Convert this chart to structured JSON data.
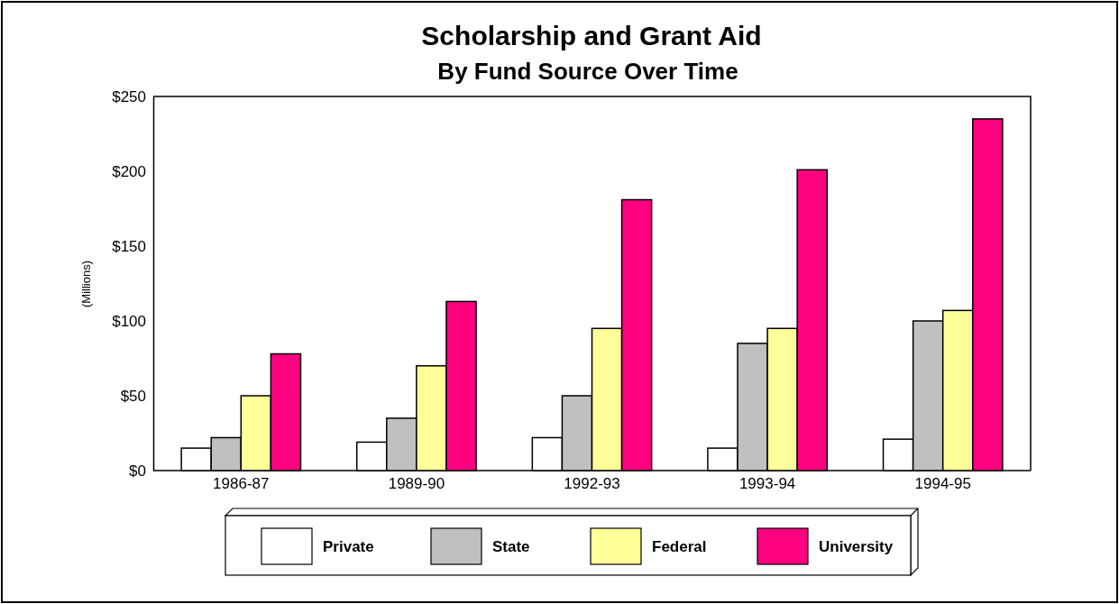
{
  "chart_data": {
    "type": "bar",
    "title": "Scholarship and Grant Aid",
    "subtitle": "By Fund Source Over Time",
    "ylabel": "(Millions)",
    "categories": [
      "1986-87",
      "1989-90",
      "1992-93",
      "1993-94",
      "1994-95"
    ],
    "series": [
      {
        "name": "Private",
        "color": "#ffffff",
        "values": [
          15,
          19,
          22,
          15,
          21
        ]
      },
      {
        "name": "State",
        "color": "#c0c0c0",
        "values": [
          22,
          35,
          50,
          85,
          100
        ]
      },
      {
        "name": "Federal",
        "color": "#ffff99",
        "values": [
          50,
          70,
          95,
          95,
          107
        ]
      },
      {
        "name": "University",
        "color": "#ff0080",
        "values": [
          78,
          113,
          181,
          201,
          235
        ]
      }
    ],
    "ylim": [
      0,
      250
    ],
    "yticks": [
      {
        "value": 0,
        "label": "$0"
      },
      {
        "value": 50,
        "label": "$50"
      },
      {
        "value": 100,
        "label": "$100"
      },
      {
        "value": 150,
        "label": "$150"
      },
      {
        "value": 200,
        "label": "$200"
      },
      {
        "value": 250,
        "label": "$250"
      }
    ],
    "legend": "bottom"
  }
}
